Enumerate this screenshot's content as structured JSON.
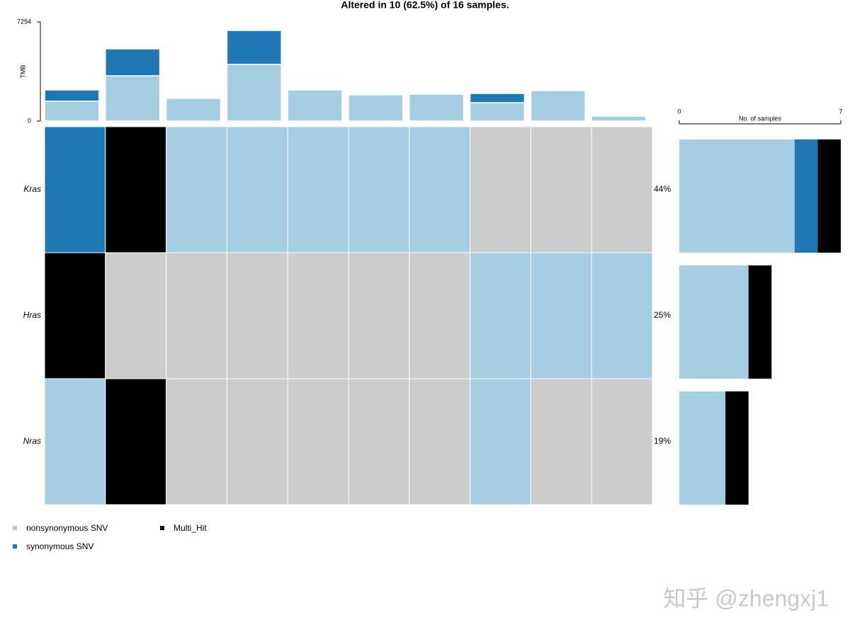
{
  "chart_data": {
    "type": "oncoplot",
    "title": "Altered in 10 (62.5%) of 16 samples.",
    "ylabel": "TMB",
    "ylim": [
      0,
      7294
    ],
    "yticks": [
      0,
      7294
    ],
    "xlabel": "No. of samples",
    "xlim": [
      0,
      7
    ],
    "xticks": [
      0,
      7
    ],
    "genes": [
      "Kras",
      "Hras",
      "Nras"
    ],
    "values": [
      44,
      25,
      19
    ],
    "value_labels": [
      "44%",
      "25%",
      "19%"
    ],
    "no_alteration_color": "#cccccc",
    "series": [
      {
        "name": "nonsynonymous SNV",
        "color": "#a6cee3",
        "tmb": [
          1460,
          3330,
          1670,
          4170,
          2290,
          1930,
          1980,
          1350,
          2240,
          360
        ],
        "counts": [
          5,
          3,
          2
        ]
      },
      {
        "name": "synonymous SNV",
        "color": "#1f78b4",
        "tmb": [
          830,
          1980,
          null,
          2500,
          null,
          null,
          null,
          680,
          null,
          null
        ],
        "counts": [
          1,
          0,
          0
        ]
      },
      {
        "name": "Multi_Hit",
        "color": "#000000",
        "counts": [
          1,
          1,
          1
        ]
      }
    ],
    "matrix": [
      [
        "synonymous SNV",
        "Multi_Hit",
        "nonsynonymous SNV",
        "nonsynonymous SNV",
        "nonsynonymous SNV",
        "nonsynonymous SNV",
        "nonsynonymous SNV",
        null,
        null,
        null
      ],
      [
        "Multi_Hit",
        null,
        null,
        null,
        null,
        null,
        null,
        "nonsynonymous SNV",
        "nonsynonymous SNV",
        "nonsynonymous SNV"
      ],
      [
        "nonsynonymous SNV",
        "Multi_Hit",
        null,
        null,
        null,
        null,
        null,
        "nonsynonymous SNV",
        null,
        null
      ]
    ],
    "watermark": "知乎 @zhengxj1"
  }
}
